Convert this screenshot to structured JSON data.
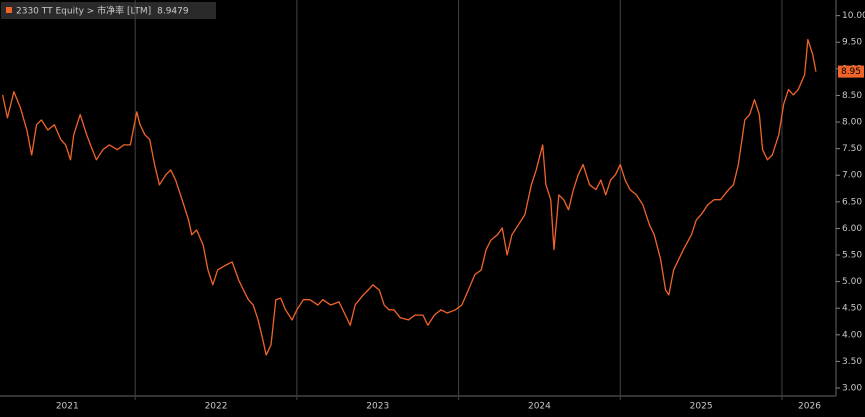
{
  "chart_data": {
    "type": "line",
    "x": [
      2021.18,
      2021.21,
      2021.25,
      2021.29,
      2021.33,
      2021.36,
      2021.39,
      2021.42,
      2021.46,
      2021.5,
      2021.54,
      2021.57,
      2021.6,
      2021.62,
      2021.66,
      2021.7,
      2021.73,
      2021.76,
      2021.8,
      2021.84,
      2021.89,
      2021.93,
      2021.97,
      2022.01,
      2022.03,
      2022.06,
      2022.09,
      2022.12,
      2022.15,
      2022.19,
      2022.22,
      2022.25,
      2022.29,
      2022.33,
      2022.35,
      2022.38,
      2022.42,
      2022.45,
      2022.48,
      2022.51,
      2022.56,
      2022.6,
      2022.64,
      2022.67,
      2022.7,
      2022.73,
      2022.76,
      2022.79,
      2022.81,
      2022.84,
      2022.87,
      2022.9,
      2022.93,
      2022.97,
      2023.0,
      2023.04,
      2023.08,
      2023.13,
      2023.16,
      2023.21,
      2023.26,
      2023.3,
      2023.33,
      2023.36,
      2023.41,
      2023.44,
      2023.47,
      2023.51,
      2023.54,
      2023.57,
      2023.6,
      2023.64,
      2023.69,
      2023.73,
      2023.78,
      2023.81,
      2023.85,
      2023.89,
      2023.93,
      2023.98,
      2024.02,
      2024.06,
      2024.1,
      2024.14,
      2024.17,
      2024.2,
      2024.24,
      2024.27,
      2024.3,
      2024.33,
      2024.37,
      2024.41,
      2024.45,
      2024.48,
      2024.52,
      2024.54,
      2024.57,
      2024.59,
      2024.62,
      2024.65,
      2024.68,
      2024.71,
      2024.74,
      2024.77,
      2024.81,
      2024.85,
      2024.88,
      2024.91,
      2024.94,
      2024.97,
      2025.0,
      2025.03,
      2025.06,
      2025.1,
      2025.14,
      2025.18,
      2025.21,
      2025.25,
      2025.28,
      2025.3,
      2025.33,
      2025.36,
      2025.39,
      2025.44,
      2025.47,
      2025.5,
      2025.54,
      2025.58,
      2025.62,
      2025.67,
      2025.7,
      2025.73,
      2025.77,
      2025.8,
      2025.83,
      2025.86,
      2025.88,
      2025.91,
      2025.94,
      2025.98,
      2026.01,
      2026.04,
      2026.07,
      2026.1,
      2026.14,
      2026.16,
      2026.19,
      2026.21
    ],
    "series": [
      {
        "name": "2330 TT Equity > 市净率 [LTM]",
        "color": "#f0642a",
        "values": [
          8.51,
          8.08,
          8.57,
          8.27,
          7.85,
          7.38,
          7.95,
          8.04,
          7.85,
          7.95,
          7.67,
          7.57,
          7.29,
          7.76,
          8.14,
          7.76,
          7.52,
          7.29,
          7.48,
          7.57,
          7.48,
          7.57,
          7.57,
          8.19,
          7.95,
          7.76,
          7.67,
          7.2,
          6.82,
          7.01,
          7.1,
          6.91,
          6.54,
          6.16,
          5.88,
          5.97,
          5.69,
          5.22,
          4.94,
          5.22,
          5.31,
          5.37,
          5.03,
          4.84,
          4.66,
          4.56,
          4.28,
          3.9,
          3.62,
          3.81,
          4.66,
          4.69,
          4.47,
          4.28,
          4.47,
          4.66,
          4.66,
          4.56,
          4.66,
          4.56,
          4.62,
          4.37,
          4.18,
          4.56,
          4.75,
          4.84,
          4.94,
          4.84,
          4.56,
          4.47,
          4.47,
          4.32,
          4.28,
          4.37,
          4.37,
          4.18,
          4.37,
          4.47,
          4.41,
          4.47,
          4.56,
          4.84,
          5.13,
          5.22,
          5.6,
          5.78,
          5.88,
          6.01,
          5.5,
          5.88,
          6.07,
          6.26,
          6.82,
          7.1,
          7.57,
          6.82,
          6.54,
          5.6,
          6.63,
          6.54,
          6.35,
          6.73,
          7.01,
          7.2,
          6.82,
          6.73,
          6.91,
          6.63,
          6.91,
          7.01,
          7.2,
          6.91,
          6.73,
          6.63,
          6.44,
          6.07,
          5.88,
          5.41,
          4.84,
          4.75,
          5.22,
          5.41,
          5.6,
          5.88,
          6.16,
          6.26,
          6.44,
          6.54,
          6.54,
          6.73,
          6.82,
          7.2,
          8.04,
          8.14,
          8.42,
          8.14,
          7.48,
          7.29,
          7.38,
          7.76,
          8.33,
          8.61,
          8.51,
          8.61,
          8.89,
          9.55,
          9.27,
          8.9479
        ]
      }
    ],
    "last_value_label": "8.95",
    "xlim": [
      2021.164,
      2026.334
    ],
    "xticks": [
      {
        "value": 2021.58,
        "label": "2021"
      },
      {
        "value": 2022.5,
        "label": "2022"
      },
      {
        "value": 2023.5,
        "label": "2023"
      },
      {
        "value": 2024.5,
        "label": "2024"
      },
      {
        "value": 2025.5,
        "label": "2025"
      },
      {
        "value": 2026.17,
        "label": "2026"
      }
    ],
    "xgrid": [
      2022,
      2023,
      2024,
      2025,
      2026
    ],
    "ylim": [
      2.85,
      10.2
    ],
    "yticks": [
      {
        "value": 3,
        "label": "3.00"
      },
      {
        "value": 3.5,
        "label": "3.50"
      },
      {
        "value": 4,
        "label": "4.00"
      },
      {
        "value": 4.5,
        "label": "4.50"
      },
      {
        "value": 5,
        "label": "5.00"
      },
      {
        "value": 5.5,
        "label": "5.50"
      },
      {
        "value": 6,
        "label": "6.00"
      },
      {
        "value": 6.5,
        "label": "6.50"
      },
      {
        "value": 7,
        "label": "7.00"
      },
      {
        "value": 7.5,
        "label": "7.50"
      },
      {
        "value": 8,
        "label": "8.00"
      },
      {
        "value": 8.5,
        "label": "8.50"
      },
      {
        "value": 9,
        "label": "9.00"
      },
      {
        "value": 9.5,
        "label": "9.50"
      },
      {
        "value": 10,
        "label": "10.00"
      }
    ]
  }
}
